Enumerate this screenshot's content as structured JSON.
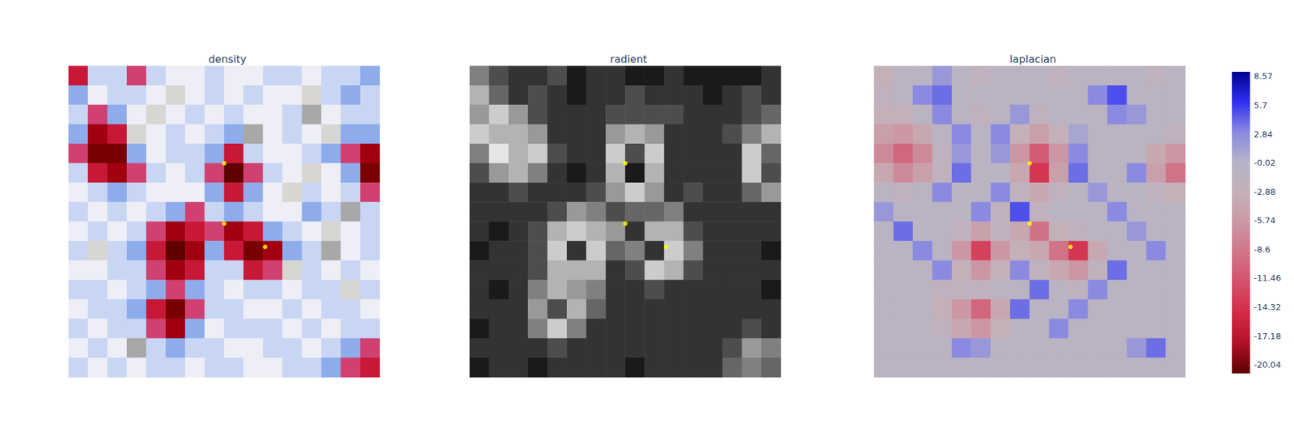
{
  "chart_data": [
    {
      "type": "heatmap",
      "title": "density",
      "tick_labels": false,
      "xlim": [
        0,
        16
      ],
      "ylim": [
        0,
        16
      ],
      "zlim": [
        0,
        10
      ],
      "z": [
        [
          7,
          4,
          4,
          6,
          4,
          3,
          3,
          4,
          3,
          3,
          4,
          4,
          3,
          4,
          4,
          5
        ],
        [
          5,
          3,
          4,
          4,
          3,
          2,
          3,
          4,
          3,
          4,
          3,
          3,
          2,
          4,
          5,
          4
        ],
        [
          4,
          6,
          5,
          3,
          2,
          3,
          4,
          3,
          4,
          3,
          3,
          4,
          1,
          3,
          4,
          4
        ],
        [
          5,
          8,
          7,
          2,
          3,
          4,
          3,
          4,
          5,
          1,
          3,
          4,
          3,
          2,
          5,
          5
        ],
        [
          6,
          9,
          9,
          5,
          3,
          4,
          4,
          5,
          7,
          4,
          3,
          3,
          4,
          5,
          6,
          8
        ],
        [
          4,
          7,
          8,
          6,
          4,
          3,
          4,
          6,
          10,
          6,
          4,
          3,
          2,
          3,
          5,
          9
        ],
        [
          3,
          4,
          5,
          4,
          3,
          3,
          3,
          5,
          7,
          5,
          3,
          2,
          4,
          3,
          4,
          6
        ],
        [
          4,
          3,
          4,
          3,
          4,
          5,
          6,
          4,
          5,
          4,
          3,
          3,
          5,
          4,
          1,
          4
        ],
        [
          3,
          4,
          3,
          4,
          6,
          8,
          7,
          6,
          8,
          7,
          5,
          4,
          3,
          2,
          3,
          4
        ],
        [
          4,
          2,
          4,
          5,
          7,
          10,
          8,
          5,
          7,
          9,
          8,
          5,
          4,
          1,
          3,
          4
        ],
        [
          3,
          3,
          4,
          4,
          6,
          8,
          7,
          4,
          4,
          7,
          6,
          2,
          4,
          3,
          4,
          3
        ],
        [
          4,
          4,
          3,
          4,
          5,
          6,
          5,
          4,
          3,
          4,
          4,
          3,
          4,
          4,
          2,
          4
        ],
        [
          3,
          4,
          4,
          5,
          7,
          9,
          6,
          4,
          4,
          3,
          3,
          4,
          3,
          4,
          4,
          3
        ],
        [
          4,
          3,
          4,
          4,
          6,
          8,
          5,
          3,
          4,
          4,
          4,
          3,
          4,
          3,
          4,
          4
        ],
        [
          3,
          4,
          3,
          1,
          4,
          5,
          4,
          4,
          3,
          3,
          4,
          4,
          3,
          4,
          5,
          6
        ],
        [
          4,
          3,
          4,
          3,
          4,
          4,
          3,
          4,
          4,
          3,
          3,
          4,
          4,
          5,
          6,
          7
        ]
      ],
      "points": {
        "x": [
          8.0,
          8.0,
          10.1
        ],
        "y": [
          11.0,
          7.9,
          6.7
        ],
        "color": "#ffff00"
      }
    },
    {
      "type": "heatmap",
      "title": "radient",
      "tick_labels": false,
      "xlim": [
        0,
        16
      ],
      "ylim": [
        0,
        16
      ],
      "zlim": [
        0,
        10
      ],
      "z": [
        [
          5,
          3,
          2,
          2,
          3,
          1,
          2,
          2,
          1,
          1,
          2,
          1,
          1,
          1,
          1,
          2
        ],
        [
          7,
          4,
          2,
          3,
          2,
          1,
          2,
          2,
          3,
          2,
          2,
          2,
          1,
          2,
          3,
          2
        ],
        [
          6,
          8,
          6,
          3,
          2,
          2,
          2,
          3,
          3,
          3,
          3,
          2,
          2,
          2,
          3,
          4
        ],
        [
          8,
          7,
          7,
          6,
          2,
          2,
          2,
          6,
          7,
          6,
          2,
          2,
          2,
          3,
          5,
          7
        ],
        [
          5,
          9,
          7,
          8,
          3,
          2,
          2,
          8,
          3,
          8,
          2,
          2,
          2,
          2,
          8,
          4
        ],
        [
          3,
          6,
          7,
          5,
          2,
          1,
          2,
          7,
          1,
          7,
          2,
          2,
          2,
          2,
          8,
          3
        ],
        [
          2,
          2,
          3,
          2,
          2,
          2,
          3,
          6,
          8,
          6,
          2,
          3,
          2,
          2,
          4,
          6
        ],
        [
          2,
          2,
          2,
          2,
          3,
          6,
          5,
          3,
          4,
          4,
          5,
          2,
          2,
          2,
          2,
          2
        ],
        [
          2,
          1,
          2,
          3,
          7,
          8,
          7,
          6,
          2,
          7,
          7,
          3,
          2,
          2,
          2,
          2
        ],
        [
          1,
          2,
          2,
          3,
          8,
          2,
          8,
          4,
          5,
          2,
          8,
          5,
          2,
          2,
          2,
          1
        ],
        [
          2,
          2,
          2,
          3,
          7,
          7,
          7,
          2,
          3,
          8,
          7,
          3,
          2,
          2,
          2,
          2
        ],
        [
          2,
          1,
          2,
          5,
          7,
          6,
          5,
          2,
          2,
          3,
          2,
          2,
          2,
          2,
          2,
          1
        ],
        [
          2,
          2,
          2,
          6,
          3,
          7,
          4,
          2,
          2,
          2,
          2,
          2,
          2,
          2,
          2,
          2
        ],
        [
          1,
          2,
          2,
          5,
          8,
          5,
          2,
          2,
          2,
          2,
          2,
          2,
          2,
          2,
          3,
          2
        ],
        [
          2,
          2,
          2,
          2,
          3,
          2,
          2,
          2,
          2,
          2,
          2,
          2,
          2,
          3,
          6,
          5
        ],
        [
          1,
          2,
          2,
          1,
          2,
          2,
          2,
          2,
          1,
          2,
          2,
          2,
          2,
          4,
          5,
          4
        ]
      ],
      "points": {
        "x": [
          8.0,
          8.0,
          10.1
        ],
        "y": [
          11.0,
          7.9,
          6.7
        ],
        "color": "#ffff00"
      }
    },
    {
      "type": "heatmap",
      "title": "laplacian",
      "tick_labels": false,
      "xlim": [
        0,
        16
      ],
      "ylim": [
        0,
        16
      ],
      "z": [
        [
          -3,
          -1,
          -1,
          2,
          -1,
          -2,
          -1,
          -1,
          -1,
          -2,
          -1,
          -1,
          -1,
          -1,
          -2,
          -1
        ],
        [
          -2,
          -1,
          3,
          4,
          -1,
          -1,
          -1,
          -1,
          -1,
          -1,
          -1,
          3,
          5,
          -1,
          -1,
          -1
        ],
        [
          -3,
          -3,
          -1,
          3,
          -1,
          -2,
          -1,
          2,
          -2,
          -1,
          -1,
          -1,
          3,
          2,
          -1,
          -1
        ],
        [
          -5,
          -6,
          -4,
          -1,
          3,
          -1,
          3,
          -3,
          -5,
          -3,
          1,
          -1,
          -1,
          -1,
          -1,
          -2
        ],
        [
          -7,
          -10,
          -7,
          -2,
          2,
          -1,
          2,
          -6,
          -11,
          -6,
          3,
          -1,
          -1,
          -1,
          -4,
          -6
        ],
        [
          -4,
          -7,
          -5,
          -2,
          4,
          -1,
          -1,
          -4,
          -14,
          -5,
          4,
          -1,
          -1,
          3,
          -5,
          -9
        ],
        [
          -1,
          -2,
          -1,
          3,
          -1,
          -1,
          3,
          -2,
          -4,
          -2,
          -1,
          2,
          -1,
          -1,
          -2,
          -3
        ],
        [
          2,
          -1,
          -1,
          -1,
          -1,
          3,
          -2,
          5,
          -2,
          -1,
          -1,
          -1,
          3,
          -1,
          -1,
          -1
        ],
        [
          -1,
          4,
          -1,
          -1,
          -2,
          -5,
          -2,
          -4,
          -9,
          -3,
          -2,
          -1,
          -1,
          2,
          -1,
          -1
        ],
        [
          -1,
          -1,
          3,
          -1,
          -6,
          -13,
          -6,
          -3,
          -4,
          -9,
          -14,
          -4,
          -1,
          -1,
          3,
          -1
        ],
        [
          -1,
          -1,
          -1,
          3,
          -3,
          -6,
          -3,
          3,
          -2,
          -4,
          -6,
          -2,
          4,
          -1,
          -1,
          -1
        ],
        [
          -1,
          -1,
          -1,
          -2,
          -2,
          -2,
          -1,
          -1,
          4,
          -1,
          -2,
          3,
          -1,
          -1,
          -1,
          -1
        ],
        [
          -1,
          -1,
          -1,
          -3,
          -6,
          -10,
          -4,
          4,
          -1,
          -1,
          3,
          -1,
          -1,
          -1,
          -1,
          -1
        ],
        [
          -1,
          -1,
          -1,
          -2,
          -4,
          -6,
          -3,
          -1,
          -1,
          3,
          -1,
          -1,
          -1,
          -1,
          -1,
          -1
        ],
        [
          -1,
          -1,
          -1,
          -1,
          3,
          2,
          -1,
          -1,
          -1,
          -1,
          -1,
          -1,
          -1,
          2,
          4,
          -1
        ],
        [
          -1,
          -1,
          -1,
          -1,
          -1,
          -1,
          -1,
          -1,
          -1,
          -1,
          -1,
          -1,
          -1,
          -1,
          -1,
          -1
        ]
      ],
      "points": {
        "x": [
          8.0,
          8.0,
          10.1
        ],
        "y": [
          11.0,
          7.9,
          6.7
        ],
        "color": "#ffff00"
      },
      "colorbar": {
        "range": [
          -20.9,
          9.0
        ],
        "ticks": [
          8.57,
          5.7,
          2.84,
          -0.02,
          -2.88,
          -5.74,
          -8.6,
          -11.46,
          -14.32,
          -17.18,
          -20.04
        ]
      }
    }
  ]
}
